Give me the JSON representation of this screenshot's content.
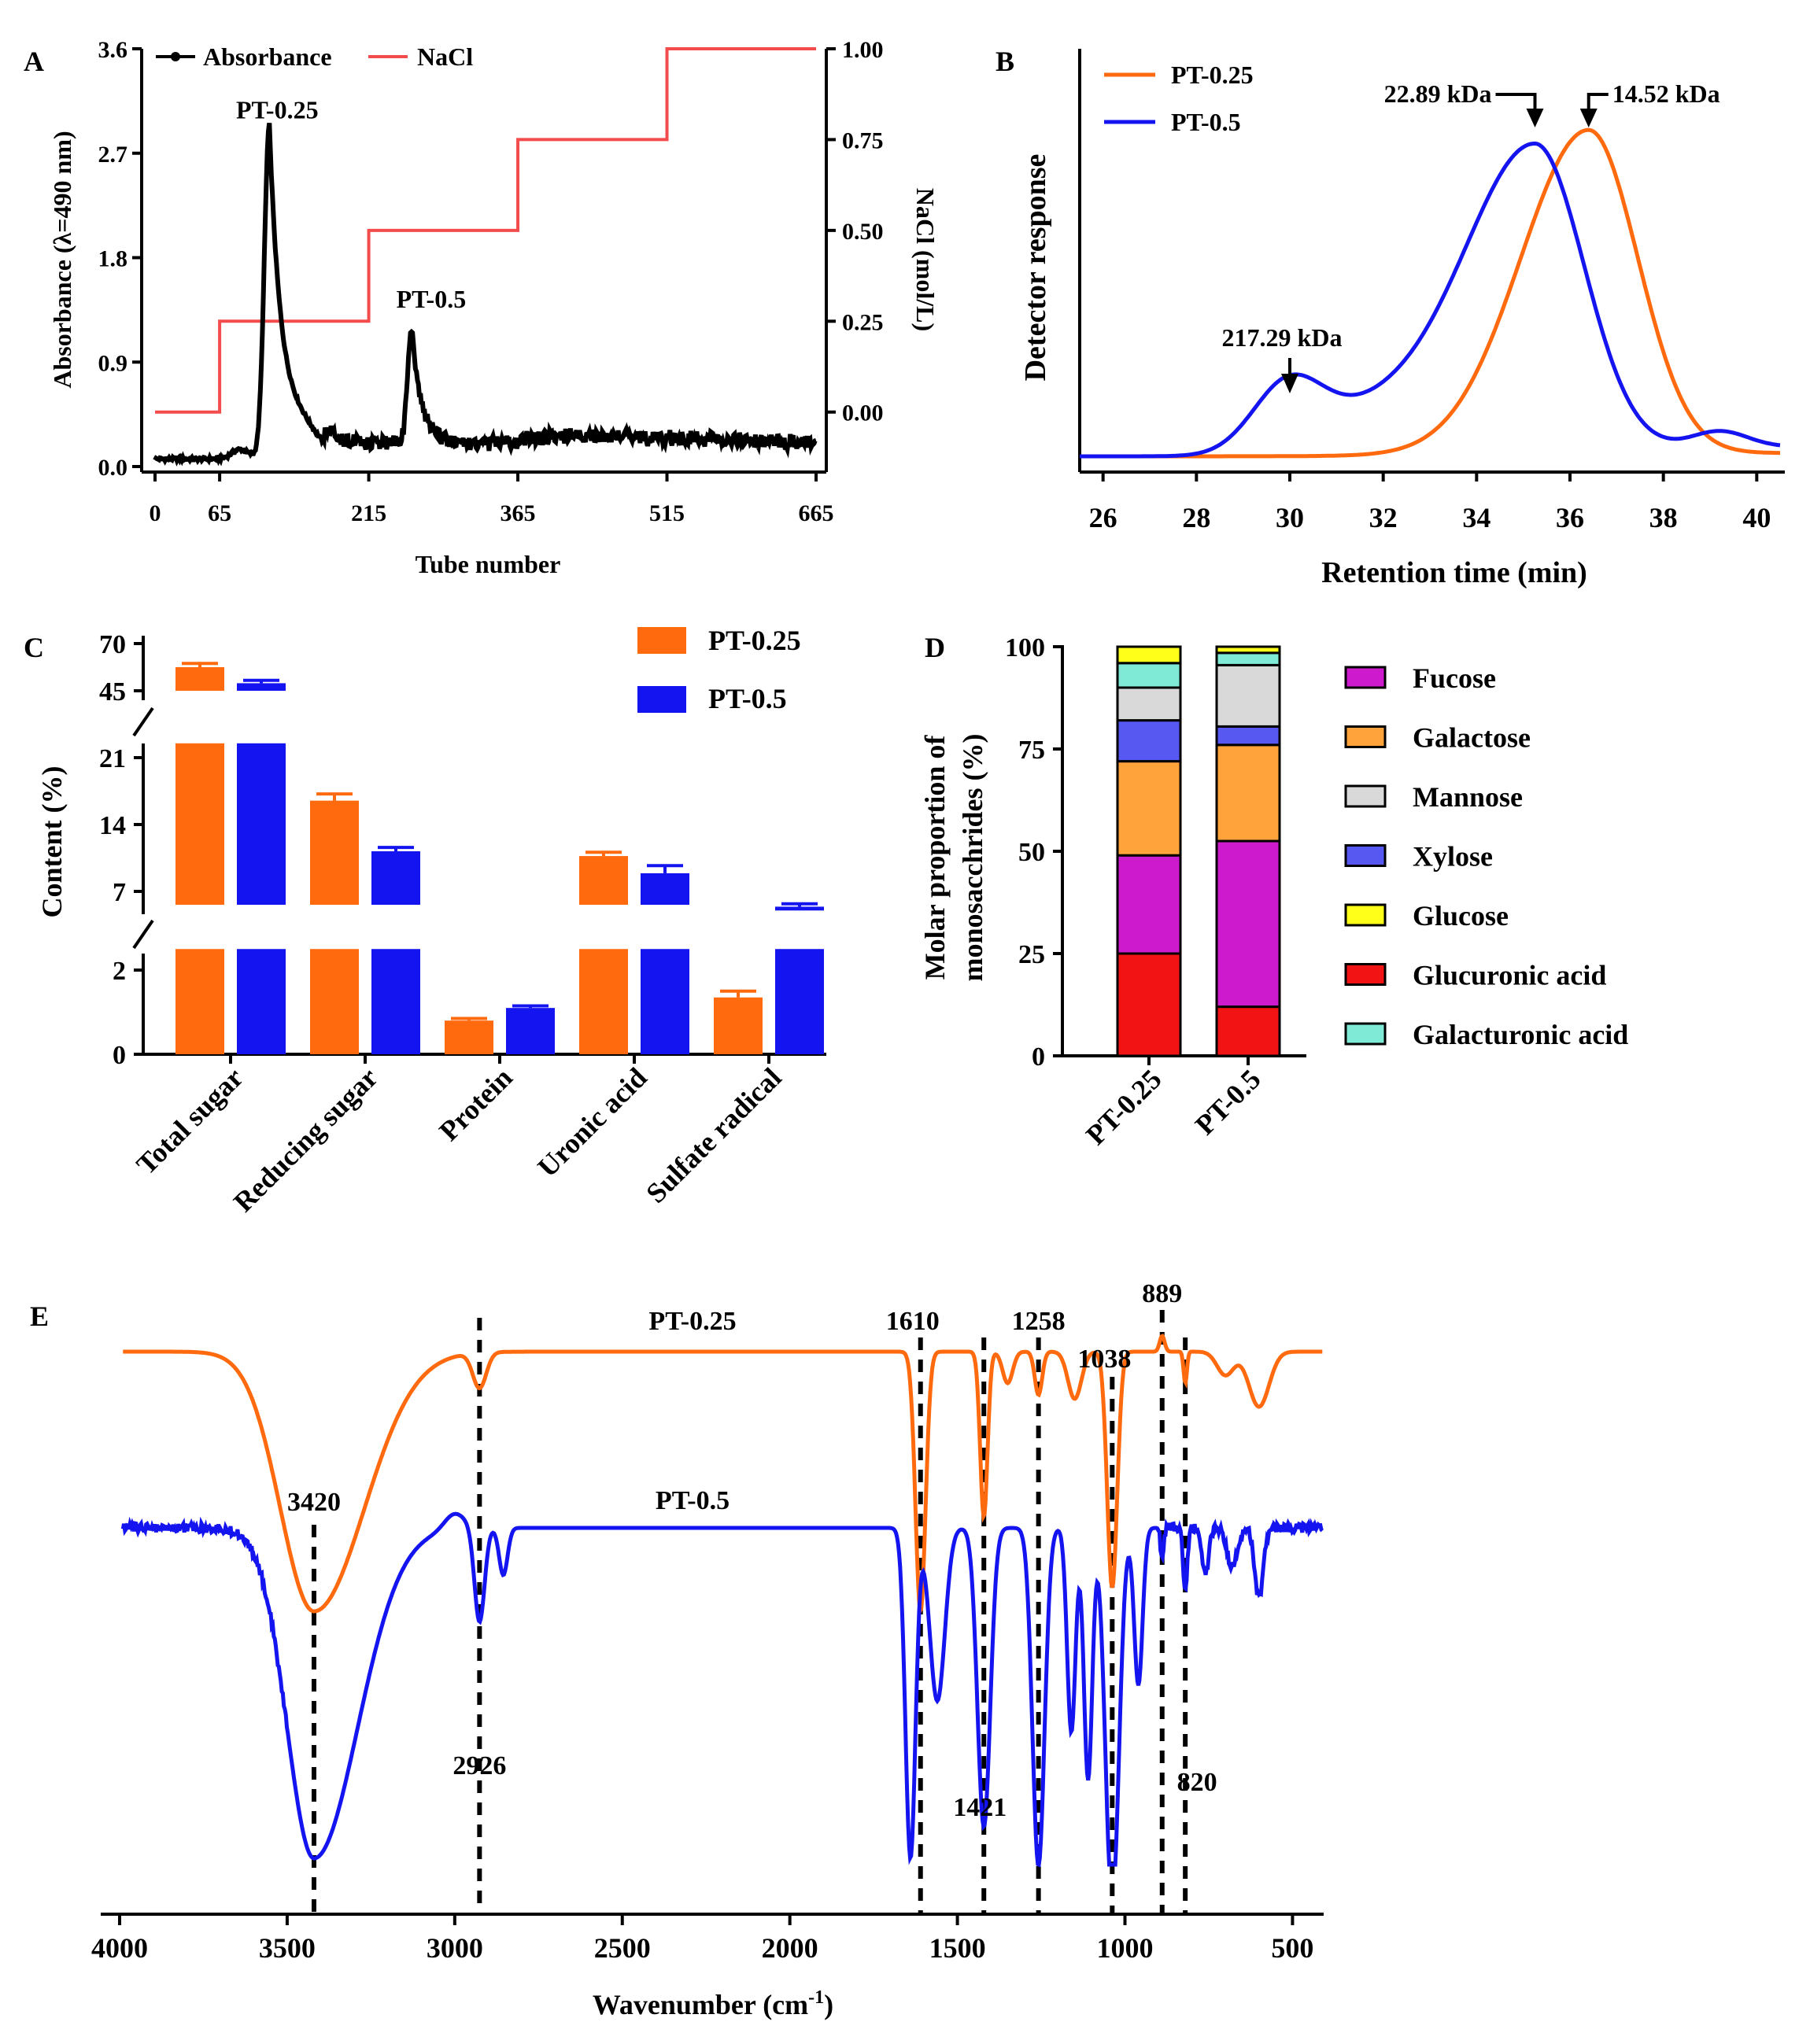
{
  "colors": {
    "orange": "#FF6A0F",
    "blue": "#1414F0",
    "nacl_red": "#F24C4C",
    "fucose": "#CC1ACC",
    "galactose": "#FFA33A",
    "mannose": "#D9D9D9",
    "xylose": "#5757F2",
    "glucose": "#FFFF1A",
    "glucuronic_acid": "#F21414",
    "galacturonic_acid": "#7FEAD6"
  },
  "chart_data": [
    {
      "panel": "A",
      "type": "line",
      "xlabel": "Tube number",
      "ylabel": "Absorbance (λ=490 nm)",
      "y2label": "NaCl (mol/L)",
      "xticks": [
        "0",
        "65",
        "215",
        "365",
        "515",
        "665"
      ],
      "xlim": [
        0,
        665
      ],
      "yticks": [
        "0.0",
        "0.9",
        "1.8",
        "2.7",
        "3.6"
      ],
      "ylim": [
        0,
        3.6
      ],
      "y2ticks": [
        "0.00",
        "0.25",
        "0.50",
        "0.75",
        "1.00"
      ],
      "y2lim": [
        -0.15,
        1.0
      ],
      "legend": [
        "Absorbance",
        "NaCl"
      ],
      "annotations": [
        "PT-0.25",
        "PT-0.5"
      ],
      "peaks": [
        {
          "name": "PT-0.25",
          "tube": 115,
          "absorbance": 2.85
        },
        {
          "name": "PT-0.5",
          "tube": 258,
          "absorbance": 1.2
        }
      ],
      "nacl_steps": [
        {
          "from": 0,
          "to": 65,
          "nacl": 0.0
        },
        {
          "from": 65,
          "to": 215,
          "nacl": 0.25
        },
        {
          "from": 215,
          "to": 365,
          "nacl": 0.5
        },
        {
          "from": 365,
          "to": 515,
          "nacl": 0.75
        },
        {
          "from": 515,
          "to": 665,
          "nacl": 1.0
        }
      ]
    },
    {
      "panel": "B",
      "type": "line",
      "xlabel": "Retention time (min)",
      "ylabel": "Detector response",
      "xticks": [
        "26",
        "28",
        "30",
        "32",
        "34",
        "36",
        "38",
        "40"
      ],
      "xlim": [
        25.5,
        40.5
      ],
      "legend": [
        "PT-0.25",
        "PT-0.5"
      ],
      "annotations": [
        {
          "label": "217.29 kDa",
          "x": 30.0
        },
        {
          "label": "22.89 kDa",
          "x": 35.25
        },
        {
          "label": "14.52 kDa",
          "x": 36.4
        }
      ],
      "series": [
        {
          "name": "PT-0.5",
          "peaks": [
            {
              "x": 29.95,
              "height": 0.2
            },
            {
              "x": 35.25,
              "height": 1.0
            }
          ]
        },
        {
          "name": "PT-0.25",
          "peaks": [
            {
              "x": 36.4,
              "height": 1.0
            }
          ]
        }
      ]
    },
    {
      "panel": "C",
      "type": "bar",
      "ylabel": "Content (%)",
      "categories": [
        "Total sugar",
        "Reducing sugar",
        "Protein",
        "Uronic acid",
        "Sulfate radical"
      ],
      "yticks": [
        "0",
        "2",
        "7",
        "14",
        "21",
        "45",
        "70"
      ],
      "series": [
        {
          "name": "PT-0.25",
          "values": [
            57.5,
            16.5,
            0.8,
            10.7,
            1.35
          ],
          "errors": [
            2.0,
            0.7,
            0.05,
            0.4,
            0.15
          ]
        },
        {
          "name": "PT-0.5",
          "values": [
            49.0,
            11.2,
            1.1,
            8.9,
            5.4
          ],
          "errors": [
            1.5,
            0.4,
            0.05,
            0.8,
            0.3
          ]
        }
      ]
    },
    {
      "panel": "D",
      "type": "bar",
      "stacked": true,
      "ylabel": "Molar proportion of monosacchrides (%)",
      "categories": [
        "PT-0.25",
        "PT-0.5"
      ],
      "yticks": [
        "0",
        "25",
        "50",
        "75",
        "100"
      ],
      "ylim": [
        0,
        100
      ],
      "series": [
        {
          "name": "Glucuronic acid",
          "values": [
            25.0,
            12.0
          ]
        },
        {
          "name": "Fucose",
          "values": [
            24.0,
            40.5
          ]
        },
        {
          "name": "Galactose",
          "values": [
            23.0,
            23.5
          ]
        },
        {
          "name": "Xylose",
          "values": [
            10.0,
            4.5
          ]
        },
        {
          "name": "Mannose",
          "values": [
            8.0,
            15.0
          ]
        },
        {
          "name": "Galacturonic acid",
          "values": [
            6.0,
            3.0
          ]
        },
        {
          "name": "Glucose",
          "values": [
            4.0,
            1.5
          ]
        }
      ],
      "legend": [
        "Fucose",
        "Galactose",
        "Mannose",
        "Xylose",
        "Glucose",
        "Glucuronic acid",
        "Galacturonic acid"
      ]
    },
    {
      "panel": "E",
      "type": "line",
      "xlabel": "Wavenumber (cm⁻¹)",
      "xticks": [
        "4000",
        "3500",
        "3000",
        "2500",
        "2000",
        "1500",
        "1000",
        "500"
      ],
      "xlim": [
        4000,
        400
      ],
      "series_labels": [
        "PT-0.25",
        "PT-0.5"
      ],
      "marked_bands": [
        "3420",
        "2926",
        "1610",
        "1421",
        "1258",
        "1038",
        "889",
        "820"
      ]
    }
  ]
}
